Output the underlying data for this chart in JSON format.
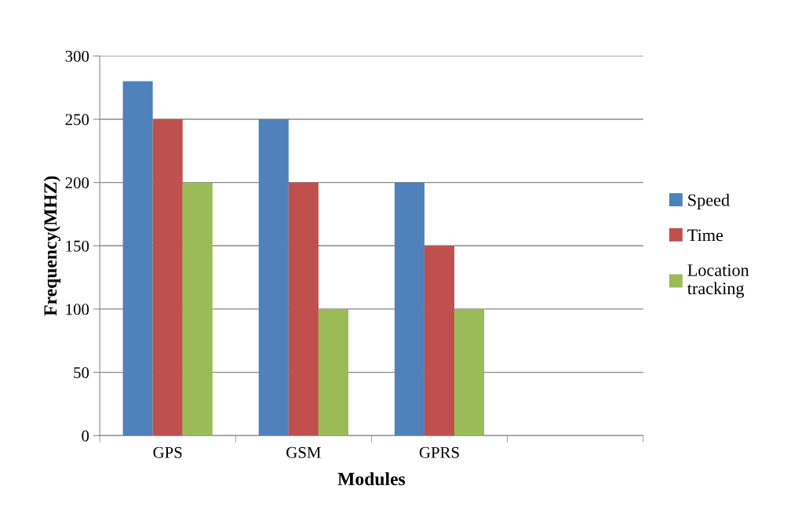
{
  "chart_data": {
    "type": "bar",
    "xlabel": "Modules",
    "ylabel": "Frequency(MHZ)",
    "categories": [
      "GPS",
      "GSM",
      "GPRS",
      null
    ],
    "series": [
      {
        "name": "Speed",
        "color": "#4f81bd",
        "values": [
          280,
          250,
          200,
          null
        ]
      },
      {
        "name": "Time",
        "color": "#c0504d",
        "values": [
          250,
          200,
          150,
          null
        ]
      },
      {
        "name": "Location\ntracking",
        "color": "#9bbb59",
        "values": [
          200,
          100,
          100,
          null
        ]
      }
    ],
    "ylim": [
      0,
      300
    ],
    "yticks": [
      0,
      50,
      100,
      150,
      200,
      250,
      300
    ],
    "grid": "y",
    "legend": "right"
  }
}
